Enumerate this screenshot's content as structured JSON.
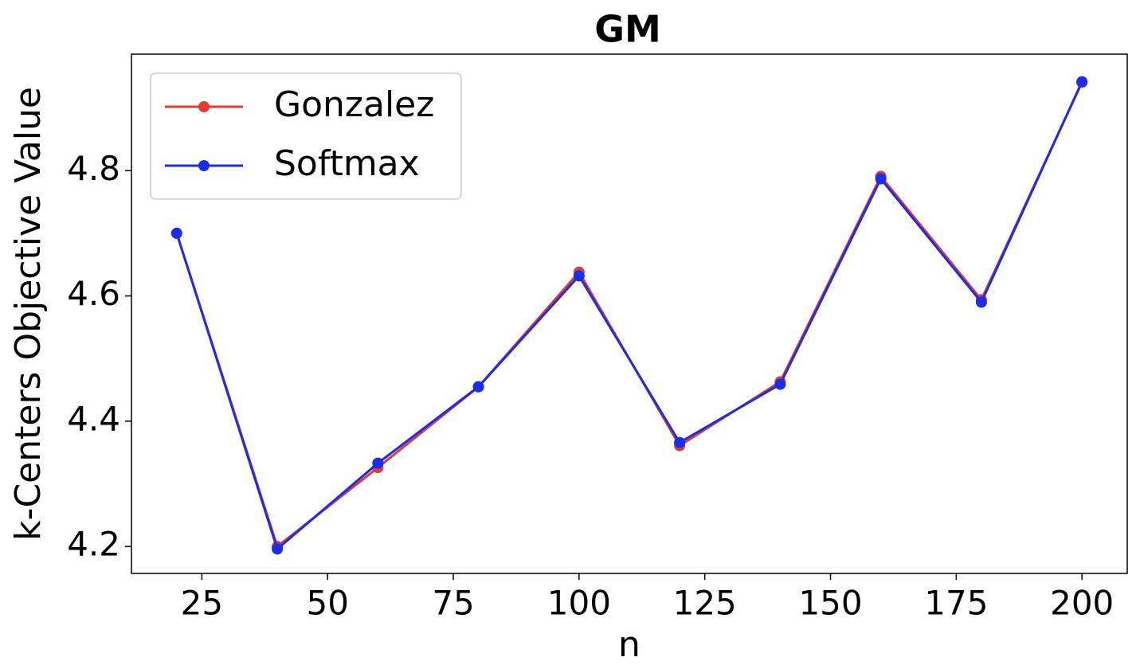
{
  "chart_data": {
    "type": "line",
    "title": "GM",
    "x_label": "n",
    "y_label": "k-Centers Objective Value",
    "x": [
      20,
      40,
      60,
      80,
      100,
      120,
      140,
      160,
      180,
      200
    ],
    "series": [
      {
        "name": "Gonzalez",
        "color": "#e8392f",
        "values": [
          4.7,
          4.2,
          4.326,
          4.455,
          4.638,
          4.361,
          4.463,
          4.791,
          4.594,
          4.941
        ]
      },
      {
        "name": "Softmax",
        "color": "#1a2cf0",
        "values": [
          4.7,
          4.196,
          4.333,
          4.455,
          4.632,
          4.366,
          4.459,
          4.787,
          4.59,
          4.942
        ]
      }
    ],
    "xlim": [
      11,
      209
    ],
    "xticks": [
      25,
      50,
      75,
      100,
      125,
      150,
      175,
      200
    ],
    "ylim": [
      4.157,
      4.986
    ],
    "yticks": [
      4.2,
      4.4,
      4.6,
      4.8
    ],
    "legend": "upper left"
  }
}
